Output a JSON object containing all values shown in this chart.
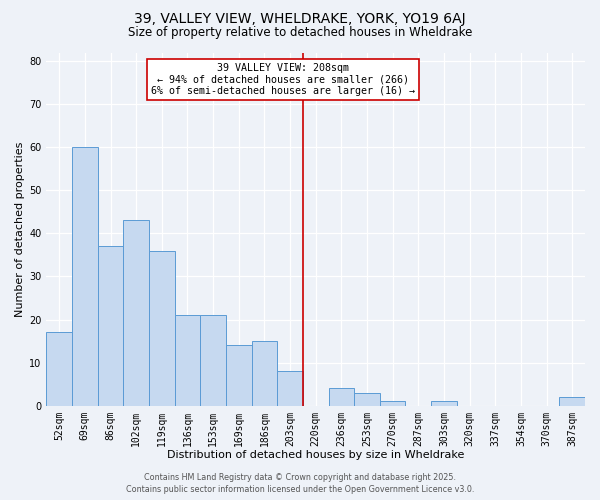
{
  "title": "39, VALLEY VIEW, WHELDRAKE, YORK, YO19 6AJ",
  "subtitle": "Size of property relative to detached houses in Wheldrake",
  "xlabel": "Distribution of detached houses by size in Wheldrake",
  "ylabel": "Number of detached properties",
  "bar_labels": [
    "52sqm",
    "69sqm",
    "86sqm",
    "102sqm",
    "119sqm",
    "136sqm",
    "153sqm",
    "169sqm",
    "186sqm",
    "203sqm",
    "220sqm",
    "236sqm",
    "253sqm",
    "270sqm",
    "287sqm",
    "303sqm",
    "320sqm",
    "337sqm",
    "354sqm",
    "370sqm",
    "387sqm"
  ],
  "bar_values": [
    17,
    60,
    37,
    43,
    36,
    21,
    21,
    14,
    15,
    8,
    0,
    4,
    3,
    1,
    0,
    1,
    0,
    0,
    0,
    0,
    2
  ],
  "bar_color": "#c6d9f0",
  "bar_edgecolor": "#5b9bd5",
  "ylim": [
    0,
    82
  ],
  "yticks": [
    0,
    10,
    20,
    30,
    40,
    50,
    60,
    70,
    80
  ],
  "vline_x": 9.5,
  "vline_color": "#cc0000",
  "annotation_title": "39 VALLEY VIEW: 208sqm",
  "annotation_line1": "← 94% of detached houses are smaller (266)",
  "annotation_line2": "6% of semi-detached houses are larger (16) →",
  "footer1": "Contains HM Land Registry data © Crown copyright and database right 2025.",
  "footer2": "Contains public sector information licensed under the Open Government Licence v3.0.",
  "bg_color": "#eef2f8",
  "grid_color": "#d8dfe8",
  "title_fontsize": 10,
  "subtitle_fontsize": 8.5,
  "axis_label_fontsize": 8,
  "tick_fontsize": 7,
  "footer_fontsize": 5.8
}
